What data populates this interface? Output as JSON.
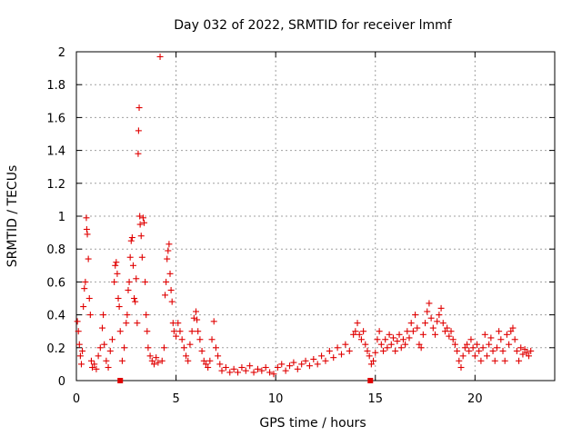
{
  "chart_data": {
    "type": "scatter",
    "title": "Day 032 of 2022, SRMTID for receiver lmmf",
    "xlabel": "GPS time / hours",
    "ylabel": "SRMTID / TECUs",
    "xlim": [
      0,
      24
    ],
    "ylim": [
      0,
      2
    ],
    "grid": true,
    "x_ticks": [
      0,
      5,
      10,
      15,
      20
    ],
    "x_tick_labels": [
      "0",
      "5",
      "10",
      "15",
      "20"
    ],
    "y_ticks": [
      0,
      0.2,
      0.4,
      0.6,
      0.8,
      1,
      1.2,
      1.4,
      1.6,
      1.8,
      2
    ],
    "y_tick_labels": [
      "0",
      "0.2",
      "0.4",
      "0.6",
      "0.8",
      "1",
      "1.2",
      "1.4",
      "1.6",
      "1.8",
      "2"
    ],
    "marker": "plus",
    "color": "#e00000",
    "series": [
      {
        "name": "SRMTID",
        "points": [
          [
            0.05,
            0.36
          ],
          [
            0.1,
            0.3
          ],
          [
            0.15,
            0.22
          ],
          [
            0.2,
            0.15
          ],
          [
            0.25,
            0.1
          ],
          [
            0.3,
            0.18
          ],
          [
            0.35,
            0.45
          ],
          [
            0.4,
            0.56
          ],
          [
            0.45,
            0.6
          ],
          [
            0.5,
            0.99
          ],
          [
            0.52,
            0.92
          ],
          [
            0.55,
            0.89
          ],
          [
            0.6,
            0.74
          ],
          [
            0.65,
            0.5
          ],
          [
            0.7,
            0.4
          ],
          [
            0.75,
            0.12
          ],
          [
            0.8,
            0.08
          ],
          [
            0.9,
            0.1
          ],
          [
            1.0,
            0.07
          ],
          [
            1.1,
            0.15
          ],
          [
            1.2,
            0.2
          ],
          [
            1.3,
            0.32
          ],
          [
            1.35,
            0.4
          ],
          [
            1.4,
            0.22
          ],
          [
            1.5,
            0.12
          ],
          [
            1.6,
            0.08
          ],
          [
            1.7,
            0.18
          ],
          [
            1.8,
            0.25
          ],
          [
            1.9,
            0.6
          ],
          [
            1.95,
            0.7
          ],
          [
            2.0,
            0.72
          ],
          [
            2.05,
            0.65
          ],
          [
            2.1,
            0.5
          ],
          [
            2.15,
            0.45
          ],
          [
            2.2,
            0.3
          ],
          [
            2.3,
            0.12
          ],
          [
            2.4,
            0.2
          ],
          [
            2.5,
            0.35
          ],
          [
            2.55,
            0.4
          ],
          [
            2.6,
            0.55
          ],
          [
            2.65,
            0.6
          ],
          [
            2.7,
            0.75
          ],
          [
            2.75,
            0.85
          ],
          [
            2.8,
            0.87
          ],
          [
            2.85,
            0.7
          ],
          [
            2.9,
            0.5
          ],
          [
            2.95,
            0.48
          ],
          [
            3.0,
            0.62
          ],
          [
            3.05,
            0.35
          ],
          [
            3.1,
            1.38
          ],
          [
            3.12,
            1.52
          ],
          [
            3.15,
            1.66
          ],
          [
            3.18,
            1.0
          ],
          [
            3.2,
            0.95
          ],
          [
            3.25,
            0.88
          ],
          [
            3.3,
            0.75
          ],
          [
            3.35,
            0.99
          ],
          [
            3.4,
            0.96
          ],
          [
            3.45,
            0.6
          ],
          [
            3.5,
            0.4
          ],
          [
            3.55,
            0.3
          ],
          [
            3.6,
            0.2
          ],
          [
            3.7,
            0.15
          ],
          [
            3.8,
            0.12
          ],
          [
            3.9,
            0.1
          ],
          [
            4.0,
            0.14
          ],
          [
            4.1,
            0.11
          ],
          [
            4.2,
            1.97
          ],
          [
            4.3,
            0.12
          ],
          [
            4.4,
            0.2
          ],
          [
            4.45,
            0.52
          ],
          [
            4.5,
            0.6
          ],
          [
            4.55,
            0.74
          ],
          [
            4.6,
            0.79
          ],
          [
            4.65,
            0.83
          ],
          [
            4.7,
            0.65
          ],
          [
            4.75,
            0.55
          ],
          [
            4.8,
            0.48
          ],
          [
            4.85,
            0.35
          ],
          [
            4.9,
            0.3
          ],
          [
            5.0,
            0.27
          ],
          [
            5.1,
            0.35
          ],
          [
            5.2,
            0.3
          ],
          [
            5.3,
            0.25
          ],
          [
            5.4,
            0.2
          ],
          [
            5.5,
            0.15
          ],
          [
            5.6,
            0.12
          ],
          [
            5.7,
            0.22
          ],
          [
            5.8,
            0.3
          ],
          [
            5.9,
            0.38
          ],
          [
            6.0,
            0.42
          ],
          [
            6.05,
            0.37
          ],
          [
            6.1,
            0.3
          ],
          [
            6.2,
            0.25
          ],
          [
            6.3,
            0.18
          ],
          [
            6.4,
            0.12
          ],
          [
            6.5,
            0.1
          ],
          [
            6.6,
            0.08
          ],
          [
            6.7,
            0.12
          ],
          [
            6.8,
            0.25
          ],
          [
            6.9,
            0.36
          ],
          [
            7.0,
            0.2
          ],
          [
            7.1,
            0.15
          ],
          [
            7.2,
            0.1
          ],
          [
            7.3,
            0.06
          ],
          [
            7.5,
            0.08
          ],
          [
            7.7,
            0.05
          ],
          [
            7.9,
            0.07
          ],
          [
            8.1,
            0.05
          ],
          [
            8.3,
            0.08
          ],
          [
            8.5,
            0.06
          ],
          [
            8.7,
            0.09
          ],
          [
            8.9,
            0.05
          ],
          [
            9.1,
            0.07
          ],
          [
            9.3,
            0.06
          ],
          [
            9.5,
            0.08
          ],
          [
            9.7,
            0.05
          ],
          [
            9.9,
            0.04
          ],
          [
            10.1,
            0.08
          ],
          [
            10.3,
            0.1
          ],
          [
            10.5,
            0.06
          ],
          [
            10.7,
            0.09
          ],
          [
            10.9,
            0.11
          ],
          [
            11.1,
            0.07
          ],
          [
            11.3,
            0.1
          ],
          [
            11.5,
            0.12
          ],
          [
            11.7,
            0.09
          ],
          [
            11.9,
            0.13
          ],
          [
            12.1,
            0.1
          ],
          [
            12.3,
            0.15
          ],
          [
            12.5,
            0.12
          ],
          [
            12.7,
            0.18
          ],
          [
            12.9,
            0.14
          ],
          [
            13.1,
            0.2
          ],
          [
            13.3,
            0.16
          ],
          [
            13.5,
            0.22
          ],
          [
            13.7,
            0.18
          ],
          [
            13.9,
            0.28
          ],
          [
            14.0,
            0.3
          ],
          [
            14.1,
            0.35
          ],
          [
            14.2,
            0.28
          ],
          [
            14.3,
            0.25
          ],
          [
            14.4,
            0.3
          ],
          [
            14.5,
            0.22
          ],
          [
            14.6,
            0.18
          ],
          [
            14.7,
            0.15
          ],
          [
            14.8,
            0.1
          ],
          [
            14.9,
            0.12
          ],
          [
            15.0,
            0.17
          ],
          [
            15.1,
            0.25
          ],
          [
            15.2,
            0.3
          ],
          [
            15.3,
            0.22
          ],
          [
            15.4,
            0.18
          ],
          [
            15.5,
            0.25
          ],
          [
            15.6,
            0.2
          ],
          [
            15.7,
            0.28
          ],
          [
            15.8,
            0.22
          ],
          [
            15.9,
            0.26
          ],
          [
            16.0,
            0.18
          ],
          [
            16.1,
            0.24
          ],
          [
            16.2,
            0.28
          ],
          [
            16.3,
            0.2
          ],
          [
            16.4,
            0.25
          ],
          [
            16.5,
            0.22
          ],
          [
            16.6,
            0.3
          ],
          [
            16.7,
            0.26
          ],
          [
            16.8,
            0.35
          ],
          [
            16.9,
            0.3
          ],
          [
            17.0,
            0.4
          ],
          [
            17.1,
            0.32
          ],
          [
            17.2,
            0.22
          ],
          [
            17.3,
            0.2
          ],
          [
            17.4,
            0.28
          ],
          [
            17.5,
            0.35
          ],
          [
            17.6,
            0.42
          ],
          [
            17.7,
            0.47
          ],
          [
            17.8,
            0.38
          ],
          [
            17.9,
            0.32
          ],
          [
            18.0,
            0.28
          ],
          [
            18.1,
            0.36
          ],
          [
            18.2,
            0.4
          ],
          [
            18.3,
            0.44
          ],
          [
            18.4,
            0.35
          ],
          [
            18.5,
            0.3
          ],
          [
            18.6,
            0.32
          ],
          [
            18.7,
            0.27
          ],
          [
            18.8,
            0.3
          ],
          [
            18.9,
            0.25
          ],
          [
            19.0,
            0.22
          ],
          [
            19.1,
            0.18
          ],
          [
            19.2,
            0.12
          ],
          [
            19.3,
            0.08
          ],
          [
            19.4,
            0.15
          ],
          [
            19.5,
            0.2
          ],
          [
            19.6,
            0.22
          ],
          [
            19.7,
            0.18
          ],
          [
            19.8,
            0.25
          ],
          [
            19.9,
            0.2
          ],
          [
            20.0,
            0.15
          ],
          [
            20.1,
            0.22
          ],
          [
            20.2,
            0.18
          ],
          [
            20.3,
            0.12
          ],
          [
            20.4,
            0.2
          ],
          [
            20.5,
            0.28
          ],
          [
            20.6,
            0.15
          ],
          [
            20.7,
            0.22
          ],
          [
            20.8,
            0.26
          ],
          [
            20.9,
            0.18
          ],
          [
            21.0,
            0.12
          ],
          [
            21.1,
            0.2
          ],
          [
            21.2,
            0.3
          ],
          [
            21.3,
            0.25
          ],
          [
            21.4,
            0.18
          ],
          [
            21.5,
            0.12
          ],
          [
            21.6,
            0.28
          ],
          [
            21.7,
            0.22
          ],
          [
            21.8,
            0.3
          ],
          [
            21.9,
            0.32
          ],
          [
            22.0,
            0.25
          ],
          [
            22.1,
            0.18
          ],
          [
            22.2,
            0.12
          ],
          [
            22.3,
            0.2
          ],
          [
            22.4,
            0.16
          ],
          [
            22.5,
            0.19
          ],
          [
            22.6,
            0.17
          ],
          [
            22.7,
            0.15
          ],
          [
            22.8,
            0.18
          ]
        ]
      }
    ],
    "gap_markers": [
      2.2,
      14.75
    ],
    "gap_marker_y": 0
  }
}
